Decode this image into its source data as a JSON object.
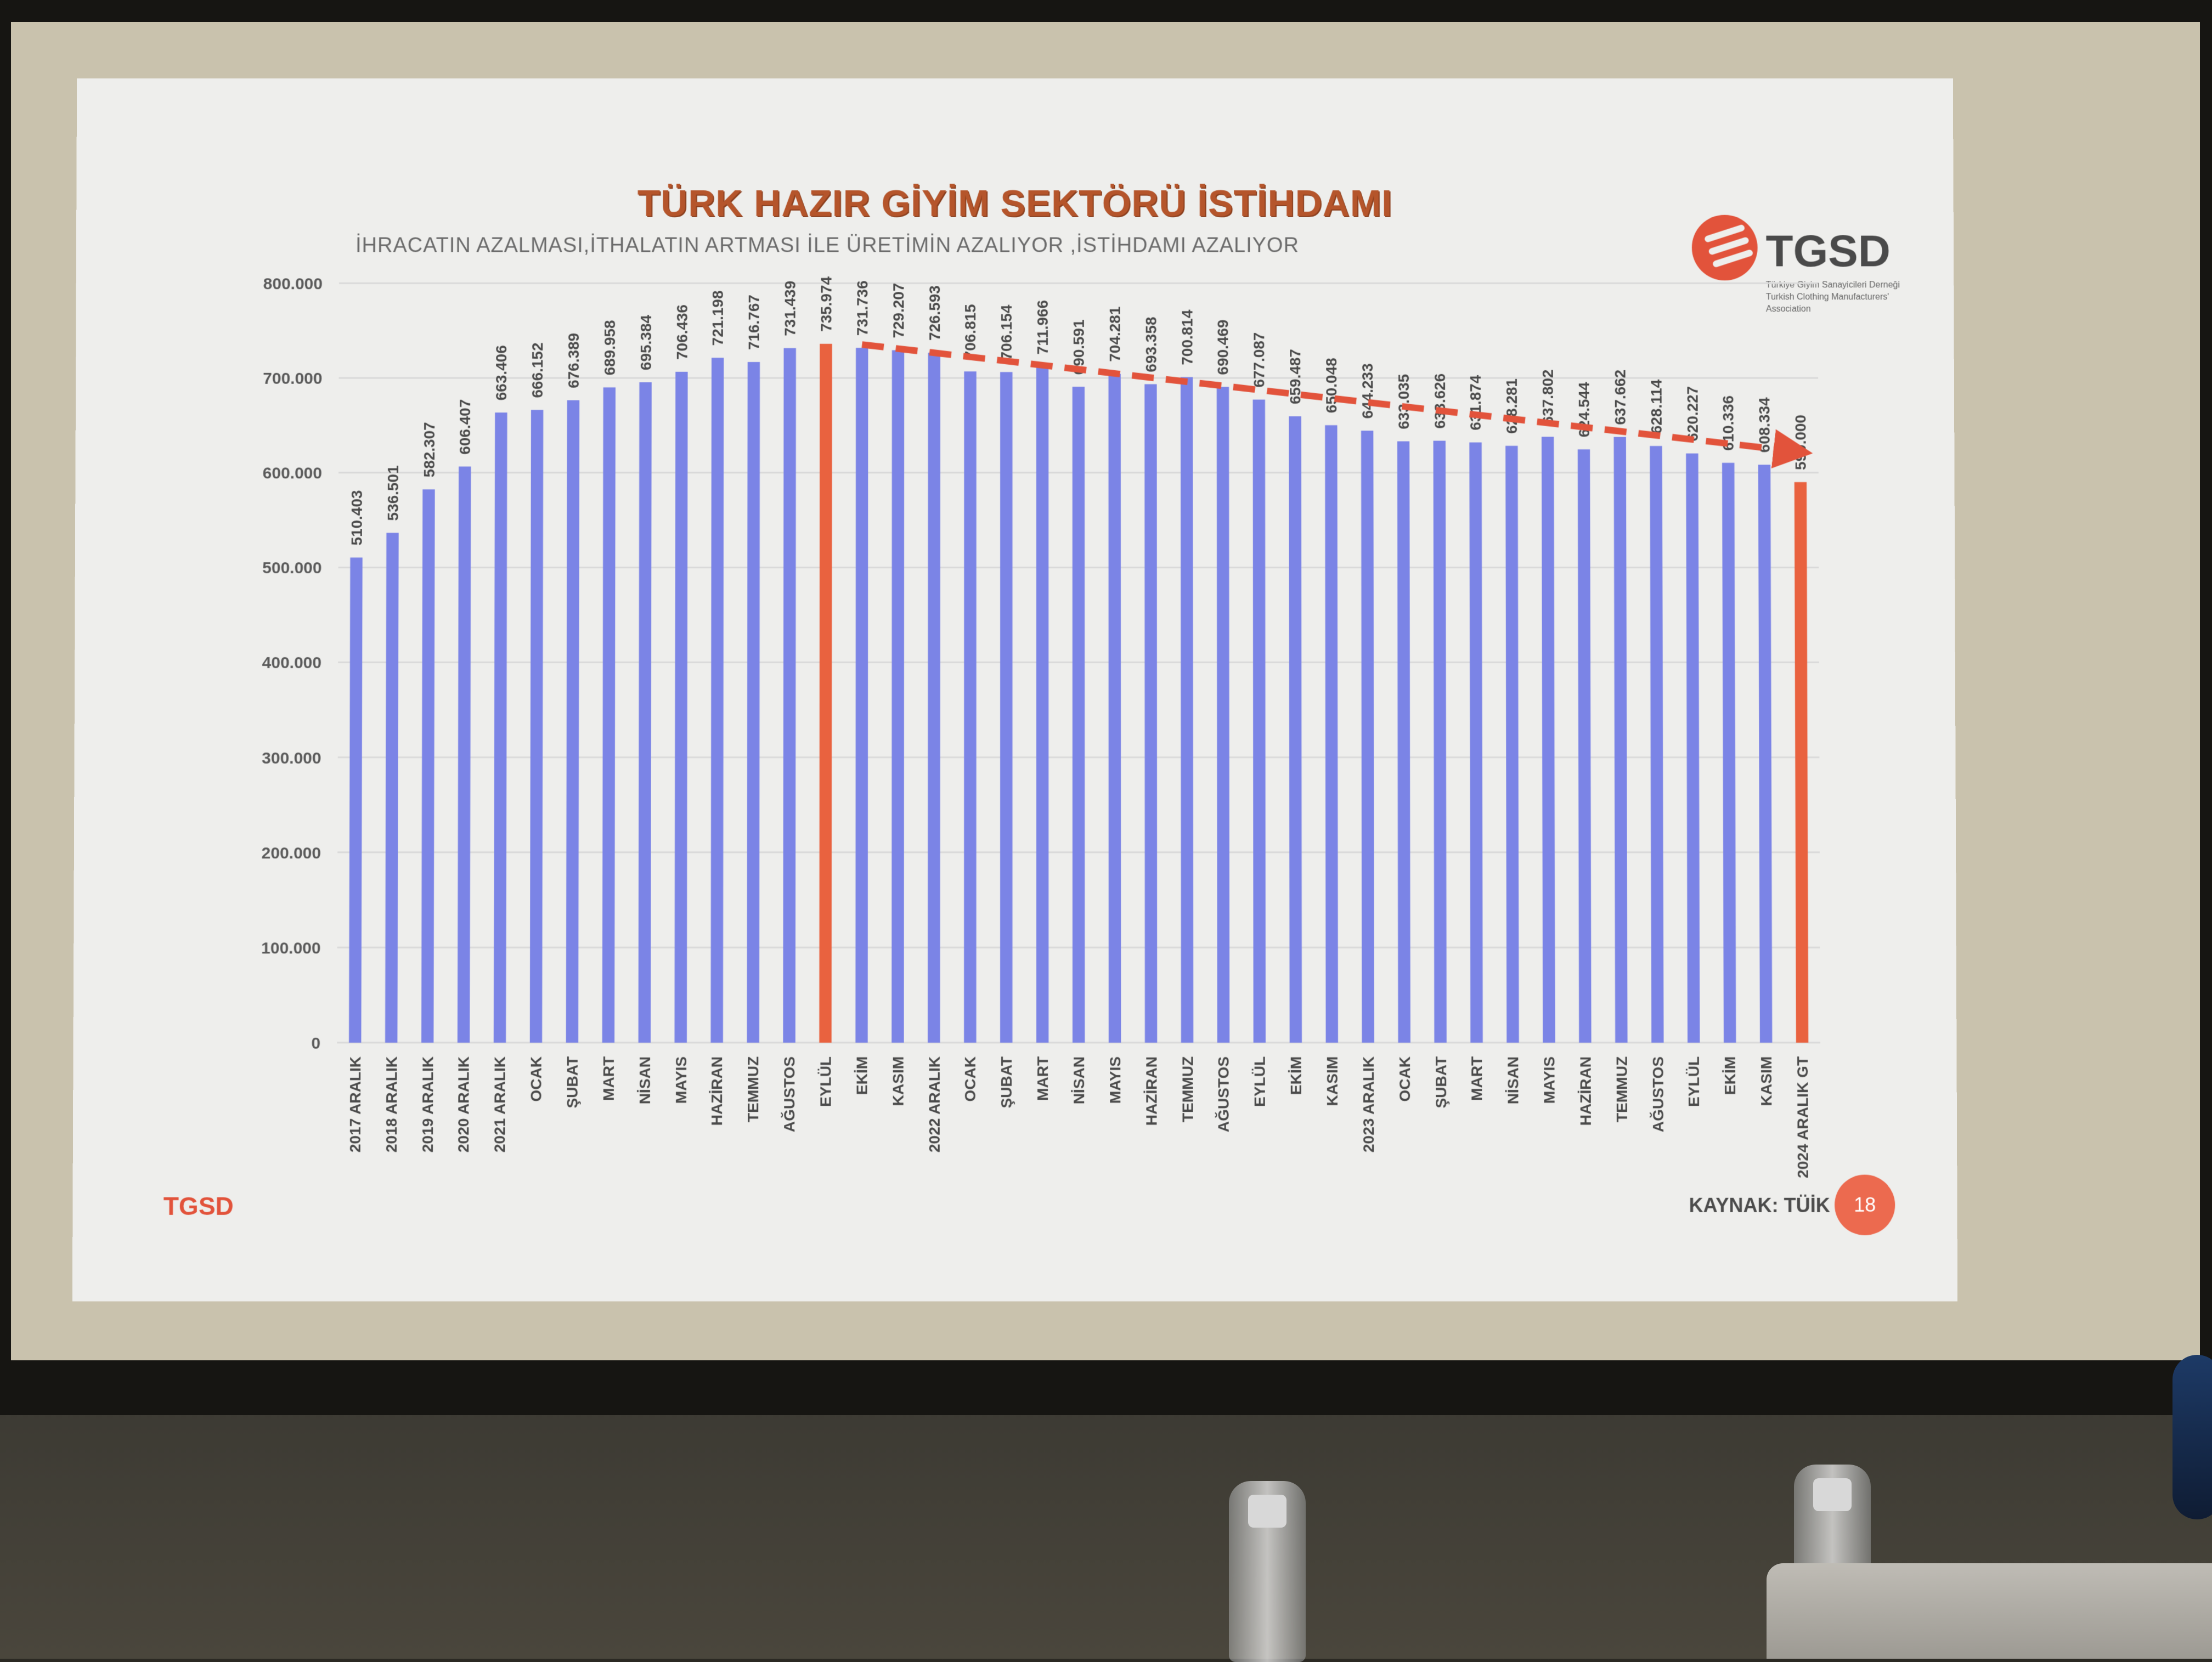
{
  "slide": {
    "title": "TÜRK HAZIR GİYİM SEKTÖRÜ İSTİHDAMI",
    "subtitle": "İHRACATIN AZALMASI,İTHALATIN ARTMASI İLE ÜRETİMİN AZALIYOR ,İSTİHDAMI AZALIYOR",
    "logo_text": "TGSD",
    "logo_caption_line1": "Türkiye Giyim Sanayicileri Derneği",
    "logo_caption_line2": "Turkish Clothing Manufacturers' Association",
    "footer_brand": "TGSD",
    "source": "KAYNAK: TÜİK",
    "page_number": "18"
  },
  "chart_data": {
    "type": "bar",
    "title": "TÜRK HAZIR GİYİM SEKTÖRÜ İSTİHDAMI",
    "ylim": [
      0,
      800000
    ],
    "y_ticks": [
      "0",
      "100.000",
      "200.000",
      "300.000",
      "400.000",
      "500.000",
      "600.000",
      "700.000",
      "800.000"
    ],
    "grid": true,
    "colors": {
      "default": "#7b84e6",
      "highlight": "#e9623f",
      "trend": "#e2533b"
    },
    "categories": [
      "2017 ARALIK",
      "2018 ARALIK",
      "2019 ARALIK",
      "2020 ARALIK",
      "2021 ARALIK",
      "OCAK",
      "ŞUBAT",
      "MART",
      "NİSAN",
      "MAYIS",
      "HAZİRAN",
      "TEMMUZ",
      "AĞUSTOS",
      "EYLÜL",
      "EKİM",
      "KASIM",
      "2022 ARALIK",
      "OCAK",
      "ŞUBAT",
      "MART",
      "NİSAN",
      "MAYIS",
      "HAZİRAN",
      "TEMMUZ",
      "AĞUSTOS",
      "EYLÜL",
      "EKİM",
      "KASIM",
      "2023 ARALIK",
      "OCAK",
      "ŞUBAT",
      "MART",
      "NİSAN",
      "MAYIS",
      "HAZİRAN",
      "TEMMUZ",
      "AĞUSTOS",
      "EYLÜL",
      "EKİM",
      "KASIM",
      "2024 ARALIK GT"
    ],
    "values": [
      510403,
      536501,
      582307,
      606407,
      663406,
      666152,
      676389,
      689958,
      695384,
      706436,
      721198,
      716767,
      731439,
      735974,
      731736,
      729207,
      726593,
      706815,
      706154,
      711966,
      690591,
      704281,
      693358,
      700814,
      690469,
      677087,
      659487,
      650048,
      644233,
      633035,
      633626,
      631874,
      628281,
      637802,
      624544,
      637662,
      628114,
      620227,
      610336,
      608334,
      590000
    ],
    "value_labels": [
      "510.403",
      "536.501",
      "582.307",
      "606.407",
      "663.406",
      "666.152",
      "676.389",
      "689.958",
      "695.384",
      "706.436",
      "721.198",
      "716.767",
      "731.439",
      "735.974",
      "731.736",
      "729.207",
      "726.593",
      "706.815",
      "706.154",
      "711.966",
      "690.591",
      "704.281",
      "693.358",
      "700.814",
      "690.469",
      "677.087",
      "659.487",
      "650.048",
      "644.233",
      "633.035",
      "633.626",
      "631.874",
      "628.281",
      "637.802",
      "624.544",
      "637.662",
      "628.114",
      "620.227",
      "610.336",
      "608.334",
      "590.000"
    ],
    "highlight_indices": [
      13,
      40
    ],
    "trend_arrow": {
      "from_index": 14,
      "to_index": 39
    }
  }
}
